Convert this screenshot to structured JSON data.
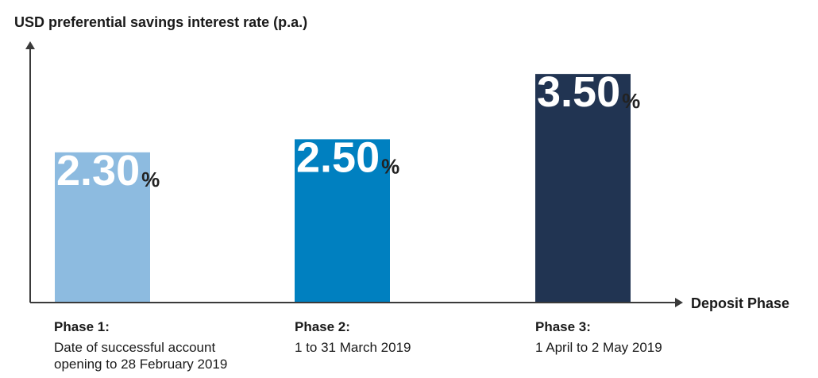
{
  "chart_data": {
    "type": "bar",
    "title": "",
    "ylabel": "USD preferential savings interest rate (p.a.)",
    "xlabel": "Deposit Phase",
    "categories": [
      "Phase 1:",
      "Phase 2:",
      "Phase 3:"
    ],
    "category_descriptions": [
      "Date of successful account\nopening to 28 February 2019",
      "1 to 31 March 2019",
      "1 April to 2 May 2019"
    ],
    "values": [
      2.3,
      2.5,
      3.5
    ],
    "value_labels": [
      "2.30",
      "2.50",
      "3.50"
    ],
    "value_suffix": "%",
    "ylim": [
      0,
      4.0
    ],
    "grid": false,
    "colors": [
      "#8dbbe0",
      "#0080c0",
      "#213452"
    ],
    "axis_color": "#3a3a3a"
  }
}
